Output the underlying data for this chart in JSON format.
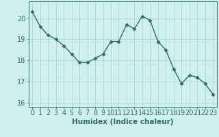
{
  "x": [
    0,
    1,
    2,
    3,
    4,
    5,
    6,
    7,
    8,
    9,
    10,
    11,
    12,
    13,
    14,
    15,
    16,
    17,
    18,
    19,
    20,
    21,
    22,
    23
  ],
  "y": [
    20.3,
    19.6,
    19.2,
    19.0,
    18.7,
    18.3,
    17.9,
    17.9,
    18.1,
    18.3,
    18.9,
    18.9,
    19.7,
    19.5,
    20.1,
    19.9,
    18.9,
    18.5,
    17.6,
    16.9,
    17.3,
    17.2,
    16.9,
    16.4
  ],
  "line_color": "#2d6b6b",
  "marker": "D",
  "marker_size": 2.5,
  "bg_color": "#cff0ec",
  "grid_color": "#aad8d2",
  "xlabel": "Humidex (Indice chaleur)",
  "ylim": [
    15.8,
    20.8
  ],
  "xlim": [
    -0.5,
    23.5
  ],
  "yticks": [
    16,
    17,
    18,
    19,
    20
  ],
  "xticks": [
    0,
    1,
    2,
    3,
    4,
    5,
    6,
    7,
    8,
    9,
    10,
    11,
    12,
    13,
    14,
    15,
    16,
    17,
    18,
    19,
    20,
    21,
    22,
    23
  ],
  "xlabel_fontsize": 7.5,
  "tick_fontsize": 7,
  "tick_color": "#2d6b6b",
  "axis_color": "#2d6b6b",
  "line_width": 1.0
}
